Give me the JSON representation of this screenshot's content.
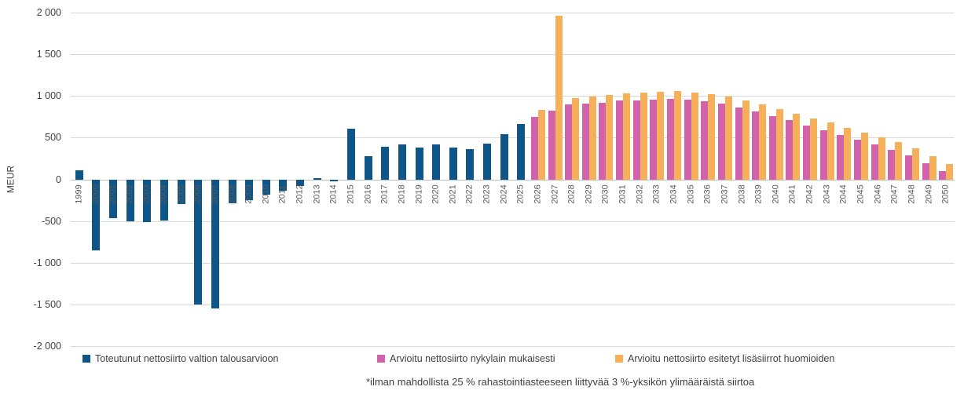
{
  "y_axis": {
    "title": "MEUR",
    "ticks": [
      "2 000",
      "1 500",
      "1 000",
      "500",
      "0",
      "-500",
      "-1 000",
      "-1 500",
      "-2 000"
    ]
  },
  "legend": {
    "items": [
      {
        "label": "Toteutunut nettosiirto valtion talousarvioon",
        "color": "#0e5688",
        "x": 105
      },
      {
        "label": "Arvioitu nettosiirto nykylain mukaisesti",
        "color": "#d263ab",
        "x": 480
      },
      {
        "label": "Arvioitu nettosiirto esitetyt lisäsiirrot huomioiden",
        "color": "#f7b05a",
        "x": 783
      }
    ]
  },
  "footnote": "*ilman mahdollista 25 % rahastointiasteeseen liittyvää 3 %-yksikön ylimääräistä siirtoa",
  "chart_data": {
    "type": "bar",
    "title": "",
    "xlabel": "",
    "ylabel": "MEUR",
    "ylim": [
      -2000,
      2000
    ],
    "ytick_step": 500,
    "grid": true,
    "legend_position": "bottom",
    "categories": [
      1999,
      2000,
      2001,
      2002,
      2003,
      2004,
      2005,
      2006,
      2007,
      2008,
      2009,
      2010,
      2011,
      2012,
      2013,
      2014,
      2015,
      2016,
      2017,
      2018,
      2019,
      2020,
      2021,
      2022,
      2023,
      2024,
      2025,
      2026,
      2027,
      2028,
      2029,
      2030,
      2031,
      2032,
      2033,
      2034,
      2035,
      2036,
      2037,
      2038,
      2039,
      2040,
      2041,
      2042,
      2043,
      2044,
      2045,
      2046,
      2047,
      2048,
      2049,
      2050
    ],
    "series": [
      {
        "name": "Toteutunut nettosiirto valtion talousarvioon",
        "key": "toteutunut",
        "color": "#0e5688",
        "values": [
          110,
          -850,
          -470,
          -500,
          -510,
          -490,
          -300,
          -1500,
          -1550,
          -290,
          -250,
          -180,
          -140,
          -80,
          15,
          -20,
          610,
          280,
          390,
          420,
          385,
          415,
          385,
          360,
          430,
          540,
          660,
          null,
          null,
          null,
          null,
          null,
          null,
          null,
          null,
          null,
          null,
          null,
          null,
          null,
          null,
          null,
          null,
          null,
          null,
          null,
          null,
          null,
          null,
          null,
          null,
          null
        ]
      },
      {
        "name": "Arvioitu nettosiirto nykylain mukaisesti",
        "key": "nykylain",
        "color": "#d263ab",
        "values": [
          null,
          null,
          null,
          null,
          null,
          null,
          null,
          null,
          null,
          null,
          null,
          null,
          null,
          null,
          null,
          null,
          null,
          null,
          null,
          null,
          null,
          null,
          null,
          null,
          null,
          null,
          null,
          750,
          820,
          900,
          910,
          920,
          945,
          950,
          955,
          965,
          955,
          935,
          910,
          865,
          815,
          760,
          710,
          645,
          585,
          535,
          480,
          415,
          355,
          285,
          190,
          95
        ]
      },
      {
        "name": "Arvioitu nettosiirto esitetyt lisäsiirrot huomioiden",
        "key": "lisasiirrot",
        "color": "#f7b05a",
        "values": [
          null,
          null,
          null,
          null,
          null,
          null,
          null,
          null,
          null,
          null,
          null,
          null,
          null,
          null,
          null,
          null,
          null,
          null,
          null,
          null,
          null,
          null,
          null,
          null,
          null,
          null,
          null,
          830,
          1960,
          975,
          990,
          1010,
          1030,
          1040,
          1045,
          1060,
          1040,
          1020,
          990,
          945,
          895,
          840,
          790,
          730,
          680,
          620,
          560,
          505,
          450,
          370,
          275,
          180
        ]
      }
    ]
  }
}
